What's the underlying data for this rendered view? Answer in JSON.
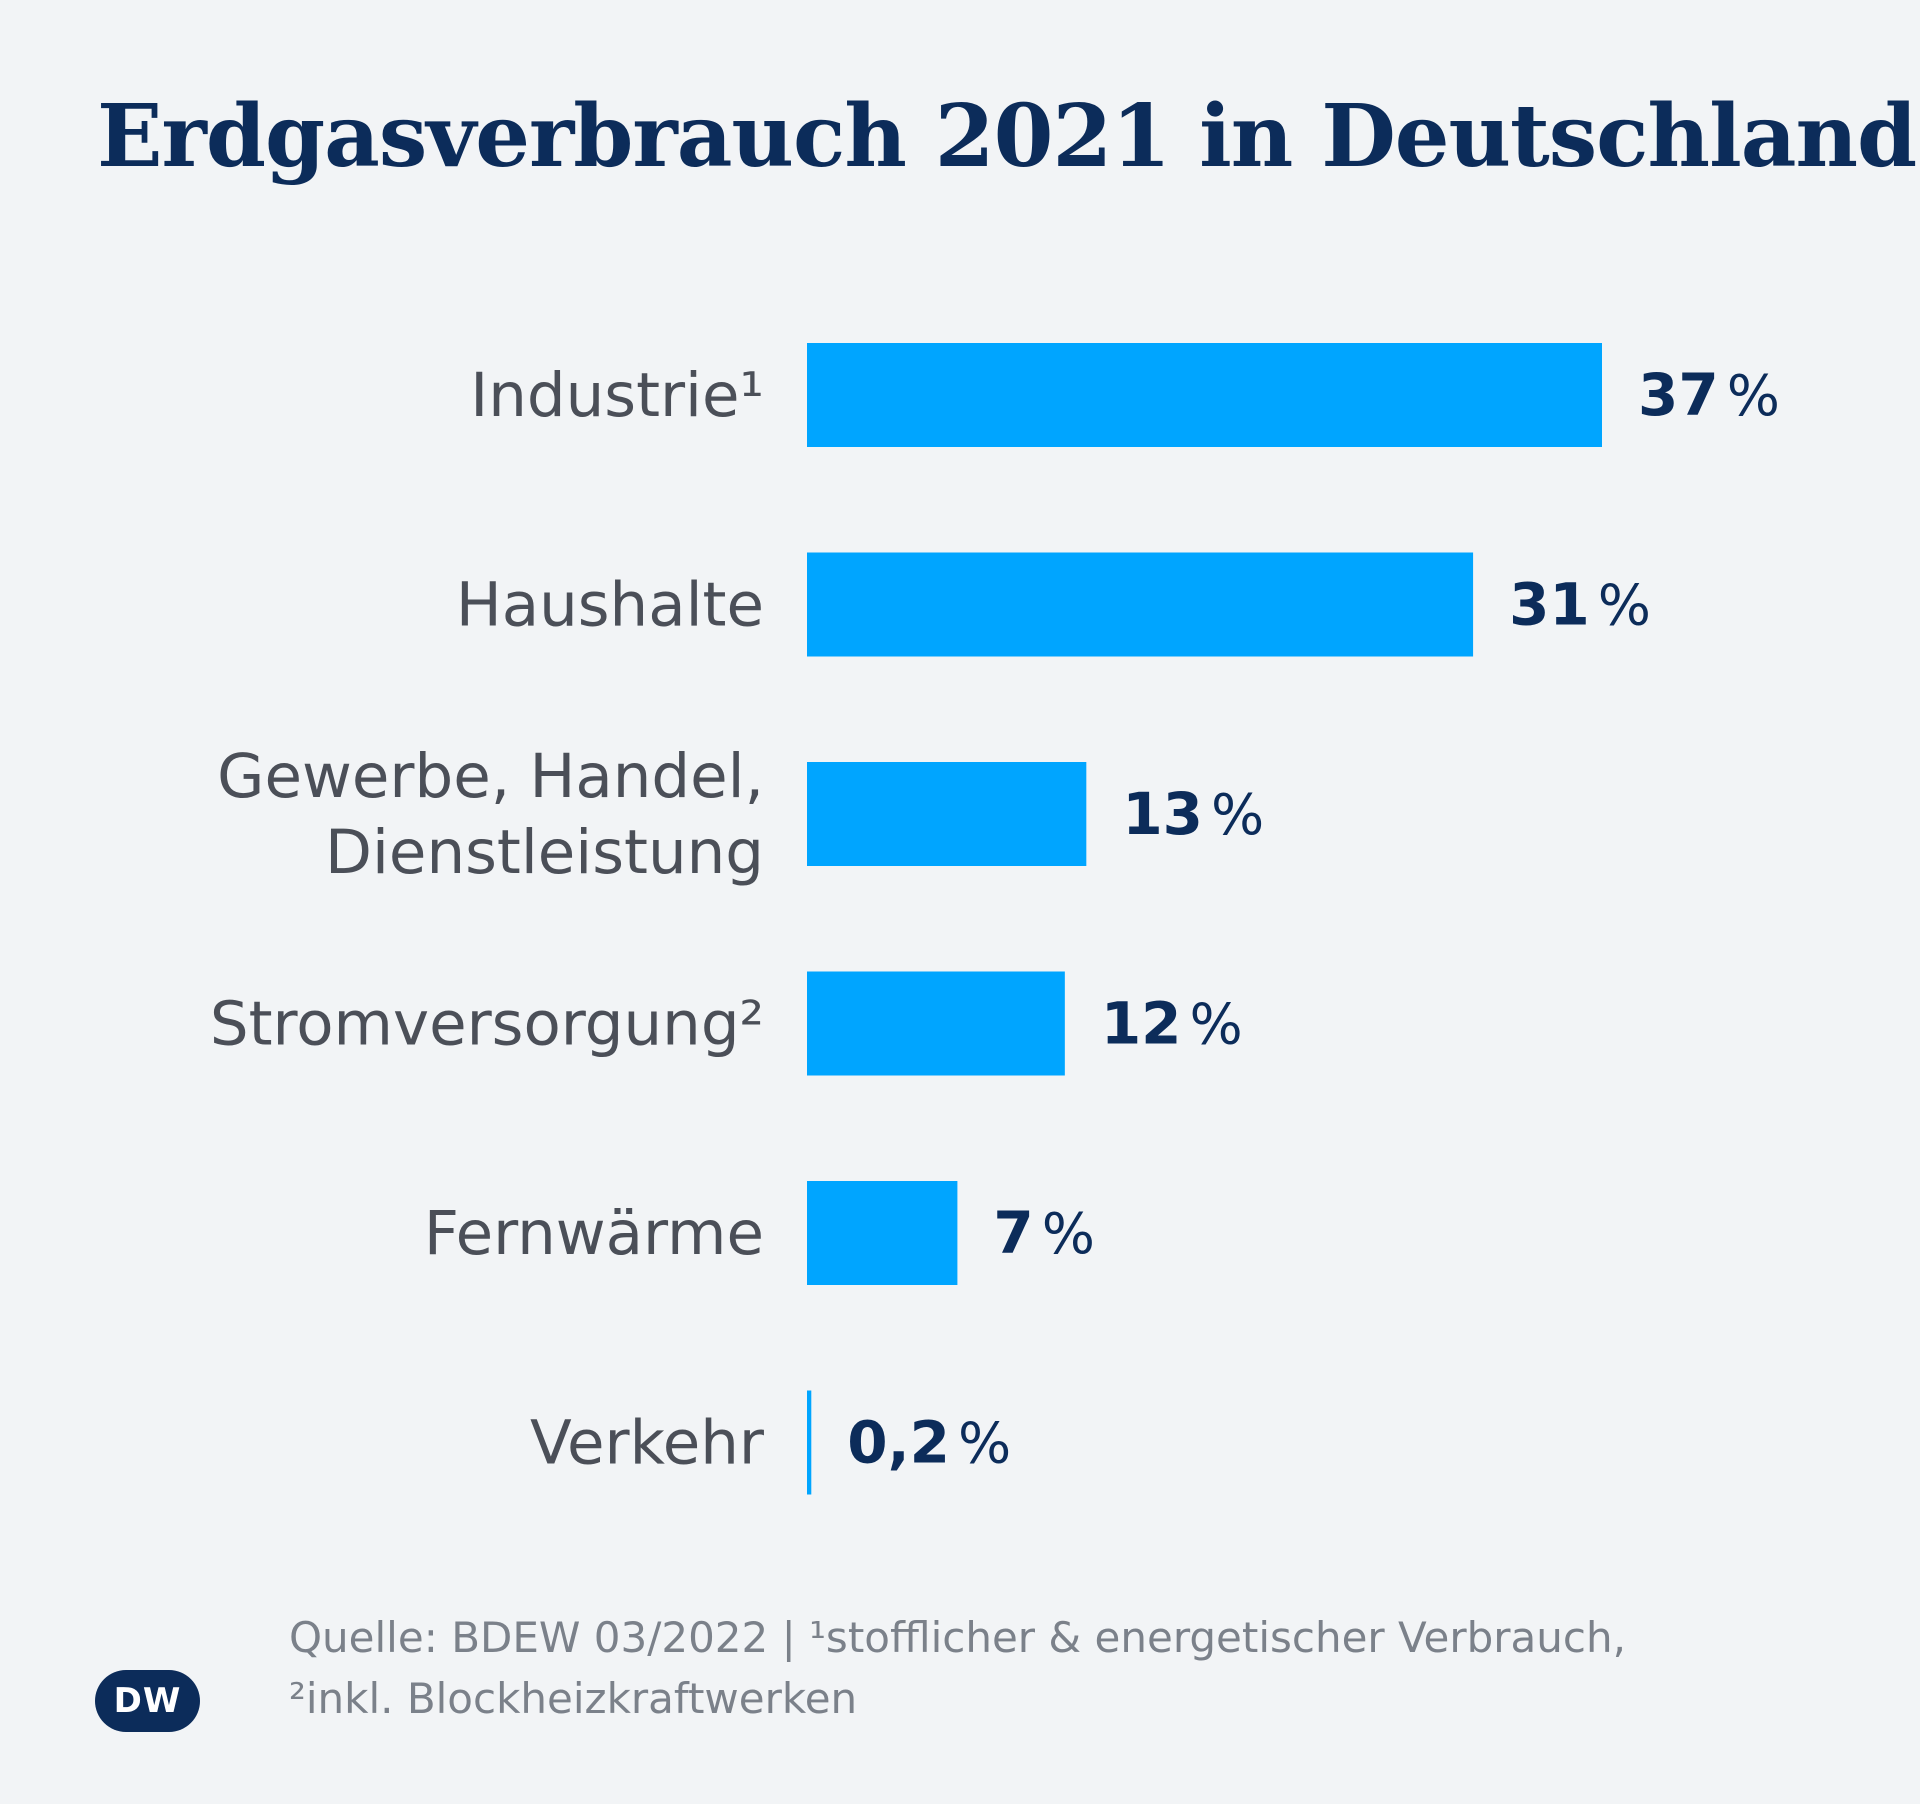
{
  "chart_data": {
    "type": "bar",
    "orientation": "horizontal",
    "title": "Erdgasverbrauch 2021 in Deutschland",
    "categories": [
      [
        "Industrie¹"
      ],
      [
        "Haushalte"
      ],
      [
        "Gewerbe, Handel,",
        "Dienstleistung"
      ],
      [
        "Stromversorgung²"
      ],
      [
        "Fernwärme"
      ],
      [
        "Verkehr"
      ]
    ],
    "values": [
      37,
      31,
      13,
      12,
      7,
      0.2
    ],
    "value_labels": [
      "37",
      "31",
      "13",
      "12",
      "7",
      "0,2"
    ],
    "unit": "%",
    "xlim": [
      0,
      37
    ],
    "grid": false,
    "bar_color": "#00a5ff"
  },
  "footer": {
    "source_line1": "Quelle: BDEW 03/2022 | ¹stofflicher & energetischer Verbrauch,",
    "source_line2": "²inkl. Blockheizkraftwerken",
    "logo_text": "DW"
  },
  "colors": {
    "background": "#f2f4f6",
    "title": "#0c2c5a",
    "category_label": "#4b4f58",
    "source": "#7b818a"
  }
}
